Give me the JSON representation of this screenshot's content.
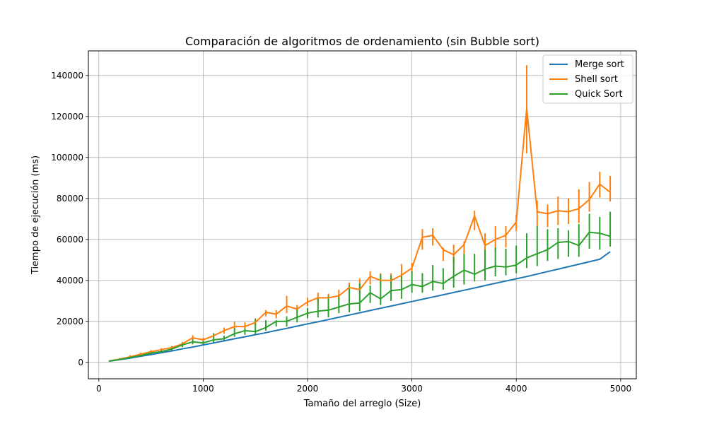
{
  "chart_data": {
    "type": "line",
    "title": "Comparación de algoritmos de ordenamiento (sin Bubble sort)",
    "xlabel": "Tamaño del arreglo (Size)",
    "ylabel": "Tiempo de ejecución (ms)",
    "xlim": [
      -100,
      5150
    ],
    "ylim": [
      -8000,
      152000
    ],
    "xticks": [
      0,
      1000,
      2000,
      3000,
      4000,
      5000
    ],
    "xtick_labels": [
      "0",
      "1000",
      "2000",
      "3000",
      "4000",
      "5000"
    ],
    "yticks": [
      0,
      20000,
      40000,
      60000,
      80000,
      100000,
      120000,
      140000
    ],
    "ytick_labels": [
      "0",
      "20000",
      "40000",
      "60000",
      "80000",
      "100000",
      "120000",
      "140000"
    ],
    "grid": true,
    "legend_position": "top-right",
    "x": [
      100,
      200,
      300,
      400,
      500,
      600,
      700,
      800,
      900,
      1000,
      1100,
      1200,
      1300,
      1400,
      1500,
      1600,
      1700,
      1800,
      1900,
      2000,
      2100,
      2200,
      2300,
      2400,
      2500,
      2600,
      2700,
      2800,
      2900,
      3000,
      3100,
      3200,
      3300,
      3400,
      3500,
      3600,
      3700,
      3800,
      3900,
      4000,
      4100,
      4200,
      4300,
      4400,
      4500,
      4600,
      4700,
      4800,
      4900
    ],
    "series": [
      {
        "name": "Merge sort",
        "color": "#1f77b4",
        "values": [
          600,
          1300,
          2100,
          3000,
          3800,
          4700,
          5600,
          6600,
          7500,
          8500,
          9500,
          10500,
          11500,
          12500,
          13500,
          14500,
          15600,
          16600,
          17700,
          18800,
          19800,
          20900,
          22000,
          23100,
          24200,
          25300,
          26400,
          27500,
          28600,
          29700,
          30800,
          31900,
          33000,
          34100,
          35200,
          36300,
          37500,
          38600,
          39700,
          40800,
          41900,
          43100,
          44300,
          45500,
          46700,
          47900,
          49100,
          50300,
          54000
        ],
        "lower": null,
        "upper": null
      },
      {
        "name": "Shell sort",
        "color": "#ff7f0e",
        "values": [
          700,
          1600,
          2700,
          4000,
          5200,
          6200,
          7200,
          9000,
          12000,
          11000,
          13000,
          15500,
          17500,
          17500,
          19500,
          24500,
          23500,
          27500,
          26000,
          29500,
          31500,
          31500,
          32500,
          36500,
          35500,
          42000,
          40000,
          40000,
          42500,
          46000,
          61000,
          62000,
          55000,
          52500,
          57500,
          71500,
          57000,
          60000,
          62000,
          68500,
          124000,
          73500,
          72500,
          74000,
          73500,
          75000,
          79500,
          87000,
          83000
        ],
        "lower": [
          500,
          1100,
          1900,
          3300,
          4400,
          5500,
          6600,
          8000,
          10800,
          10000,
          11800,
          14000,
          16000,
          16000,
          18000,
          22500,
          21500,
          24000,
          24500,
          27500,
          28500,
          29500,
          30000,
          33000,
          33000,
          38000,
          37000,
          37000,
          39000,
          43500,
          55000,
          57000,
          49500,
          48500,
          53000,
          64500,
          52000,
          54500,
          56000,
          64000,
          102000,
          66500,
          66000,
          67000,
          67500,
          68000,
          73500,
          80500,
          78500
        ],
        "upper": [
          900,
          2100,
          3500,
          4800,
          6000,
          7000,
          7900,
          10000,
          13200,
          12000,
          14200,
          17000,
          19800,
          19500,
          21500,
          25500,
          25500,
          32500,
          28000,
          31500,
          34000,
          33500,
          35500,
          39000,
          41000,
          44500,
          43500,
          43500,
          48000,
          48500,
          65000,
          65500,
          56000,
          57500,
          59000,
          74000,
          63000,
          66500,
          66500,
          72000,
          145000,
          79000,
          77000,
          81000,
          80000,
          84500,
          88000,
          93000,
          91000
        ]
      },
      {
        "name": "Quick Sort",
        "color": "#2ca02c",
        "values": [
          700,
          1400,
          2400,
          3300,
          4600,
          5200,
          6500,
          8500,
          10000,
          9500,
          11000,
          11500,
          14000,
          15500,
          15000,
          17000,
          20000,
          20000,
          22000,
          24000,
          25000,
          25500,
          27000,
          28500,
          29000,
          34000,
          31000,
          35000,
          35500,
          38000,
          37000,
          39500,
          38500,
          42000,
          45000,
          43000,
          45500,
          47000,
          46500,
          47500,
          51000,
          53000,
          55000,
          58500,
          59000,
          57000,
          63500,
          63000,
          61500
        ],
        "lower": [
          500,
          1100,
          1900,
          2800,
          3900,
          4600,
          5800,
          7400,
          8800,
          8600,
          9800,
          10500,
          12500,
          13500,
          13500,
          15500,
          17500,
          17500,
          19500,
          21500,
          22000,
          22000,
          24000,
          24500,
          25000,
          29000,
          28000,
          30000,
          31000,
          34000,
          34000,
          35000,
          35500,
          36500,
          38000,
          39500,
          40000,
          42000,
          42500,
          43500,
          46000,
          47000,
          49500,
          50500,
          51500,
          51500,
          55500,
          55000,
          56500
        ],
        "upper": [
          900,
          1700,
          2900,
          3800,
          5400,
          6000,
          7900,
          9600,
          11200,
          10500,
          14200,
          13000,
          16800,
          16500,
          21200,
          20600,
          20600,
          22500,
          26500,
          26500,
          32000,
          32500,
          33000,
          37500,
          38500,
          37500,
          43000,
          42500,
          43000,
          44500,
          43500,
          47500,
          46000,
          51500,
          53000,
          53000,
          55000,
          56000,
          55500,
          57000,
          63000,
          66500,
          65000,
          65500,
          64500,
          67500,
          72500,
          71000,
          73500
        ]
      }
    ]
  }
}
